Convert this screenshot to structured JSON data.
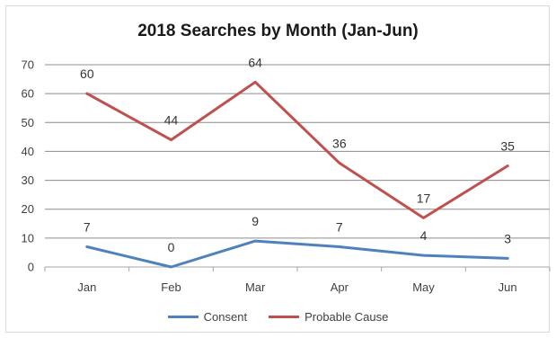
{
  "chart_data": {
    "type": "line",
    "title": "2018 Searches by Month (Jan-Jun)",
    "xlabel": "",
    "ylabel": "",
    "categories": [
      "Jan",
      "Feb",
      "Mar",
      "Apr",
      "May",
      "Jun"
    ],
    "ylim": [
      0,
      70
    ],
    "yticks": [
      0,
      10,
      20,
      30,
      40,
      50,
      60,
      70
    ],
    "grid": true,
    "legend_position": "bottom",
    "series": [
      {
        "name": "Consent",
        "values": [
          7,
          0,
          9,
          7,
          4,
          3
        ],
        "color": "#4f81bd"
      },
      {
        "name": "Probable Cause",
        "values": [
          60,
          44,
          64,
          36,
          17,
          35
        ],
        "color": "#c0504d"
      }
    ]
  }
}
